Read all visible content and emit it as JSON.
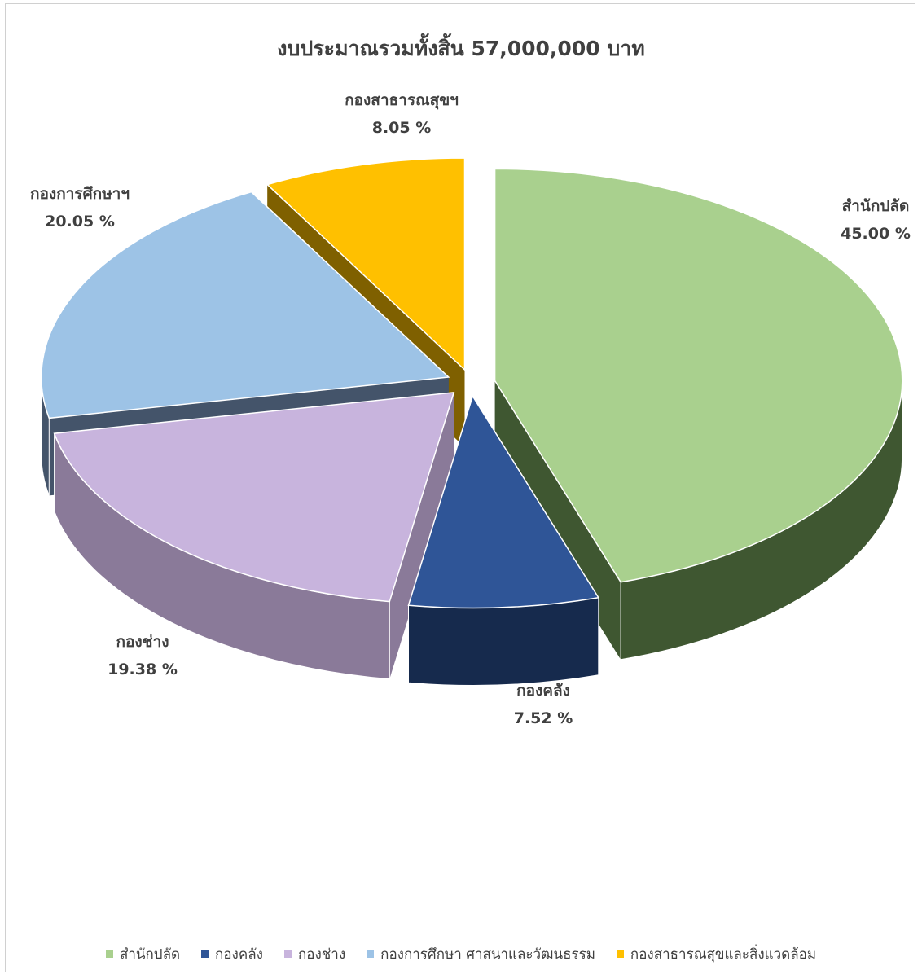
{
  "chart_data": {
    "type": "pie",
    "title": "งบประมาณรวมทั้งสิ้น 57,000,000 บาท",
    "slices": [
      {
        "name": "สำนักปลัด",
        "label": "สำนักปลัด",
        "percent": 45.0,
        "percent_text": "45.00 %",
        "color": "#a9d08e",
        "side_color": "#3f5731"
      },
      {
        "name": "กองคลัง",
        "label": "กองคลัง",
        "percent": 7.52,
        "percent_text": "7.52 %",
        "color": "#2f5597",
        "side_color": "#162a4d"
      },
      {
        "name": "กองช่าง",
        "label": "กองช่าง",
        "percent": 19.38,
        "percent_text": "19.38 %",
        "color": "#c8b4dd",
        "side_color": "#8a7a99"
      },
      {
        "name": "กองการศึกษา ศาสนาและวัฒนธรรม",
        "label": "กองการศึกษาฯ",
        "percent": 20.05,
        "percent_text": "20.05 %",
        "color": "#9dc3e6",
        "side_color": "#44546a"
      },
      {
        "name": "กองสาธารณสุขและสิ่งแวดล้อม",
        "label": "กองสาธารณสุขฯ",
        "percent": 8.05,
        "percent_text": "8.05 %",
        "color": "#ffc000",
        "side_color": "#7f6000"
      }
    ],
    "legend_position": "bottom"
  }
}
